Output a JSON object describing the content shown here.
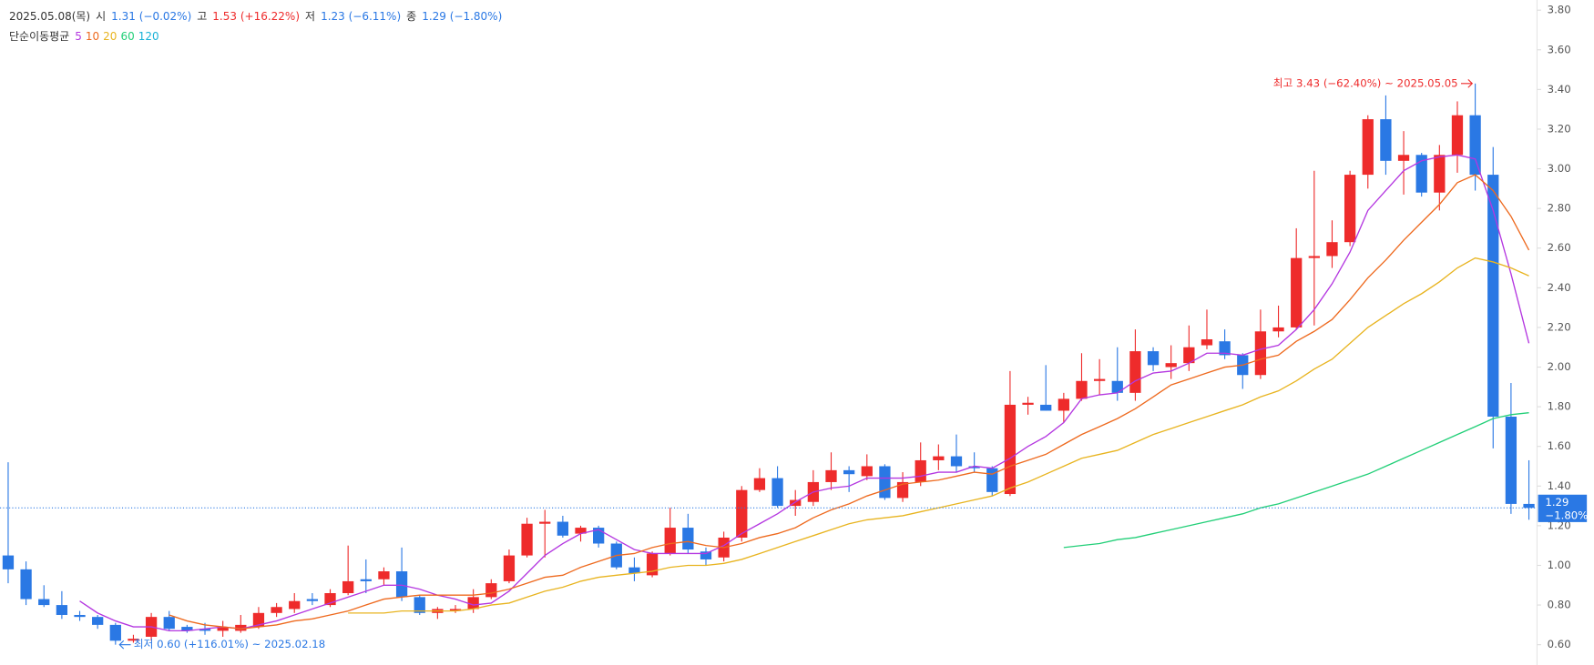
{
  "chart_data": {
    "type": "candlestick",
    "header": {
      "date": "2025.05.08(목)",
      "items": [
        {
          "label": "시",
          "text": "1.31 (−0.02%)",
          "color": "#2a78e4"
        },
        {
          "label": "고",
          "text": "1.53 (+16.22%)",
          "color": "#ee2b2b"
        },
        {
          "label": "저",
          "text": "1.23 (−6.11%)",
          "color": "#2a78e4"
        },
        {
          "label": "종",
          "text": "1.29 (−1.80%)",
          "color": "#2a78e4"
        }
      ]
    },
    "ma_label": "단순이동평균",
    "up_color": "#ee2b2b",
    "down_color": "#2a78e4",
    "open": [
      1.05,
      0.98,
      0.83,
      0.8,
      0.75,
      0.74,
      0.7,
      0.62,
      0.64,
      0.74,
      0.69,
      0.68,
      0.67,
      0.67,
      0.69,
      0.76,
      0.78,
      0.83,
      0.8,
      0.86,
      0.93,
      0.93,
      0.97,
      0.84,
      0.76,
      0.77,
      0.78,
      0.84,
      0.92,
      1.05,
      1.21,
      1.22,
      1.16,
      1.19,
      1.11,
      0.99,
      0.95,
      1.06,
      1.19,
      1.07,
      1.04,
      1.14,
      1.38,
      1.44,
      1.3,
      1.32,
      1.42,
      1.48,
      1.45,
      1.5,
      1.34,
      1.42,
      1.53,
      1.55,
      1.5,
      1.49,
      1.36,
      1.81,
      1.81,
      1.78,
      1.84,
      1.93,
      1.93,
      1.87,
      2.08,
      2.0,
      2.02,
      2.11,
      2.13,
      2.06,
      1.96,
      2.18,
      2.2,
      2.55,
      2.56,
      2.63,
      2.97,
      3.25,
      3.04,
      3.07,
      2.88,
      3.07,
      3.27,
      2.97,
      1.75,
      1.31
    ],
    "high": [
      1.52,
      1.02,
      0.9,
      0.87,
      0.77,
      0.75,
      0.71,
      0.65,
      0.76,
      0.77,
      0.7,
      0.71,
      0.72,
      0.75,
      0.79,
      0.81,
      0.86,
      0.86,
      0.88,
      1.1,
      1.03,
      0.99,
      1.09,
      0.85,
      0.79,
      0.8,
      0.88,
      0.93,
      1.08,
      1.24,
      1.28,
      1.25,
      1.2,
      1.2,
      1.12,
      1.04,
      1.07,
      1.29,
      1.26,
      1.09,
      1.17,
      1.4,
      1.49,
      1.5,
      1.38,
      1.48,
      1.57,
      1.5,
      1.56,
      1.51,
      1.47,
      1.62,
      1.61,
      1.66,
      1.57,
      1.5,
      1.98,
      1.85,
      2.01,
      1.87,
      2.07,
      2.04,
      2.1,
      2.19,
      2.1,
      2.11,
      2.21,
      2.29,
      2.19,
      2.07,
      2.29,
      2.31,
      2.7,
      2.99,
      2.74,
      2.99,
      3.27,
      3.37,
      3.19,
      3.08,
      3.12,
      3.34,
      3.43,
      3.11,
      1.92,
      1.53
    ],
    "low": [
      0.91,
      0.8,
      0.79,
      0.73,
      0.72,
      0.68,
      0.6,
      0.61,
      0.62,
      0.67,
      0.66,
      0.65,
      0.64,
      0.66,
      0.68,
      0.74,
      0.76,
      0.8,
      0.79,
      0.85,
      0.86,
      0.9,
      0.82,
      0.75,
      0.73,
      0.76,
      0.76,
      0.83,
      0.91,
      1.04,
      1.04,
      1.14,
      1.12,
      1.09,
      0.98,
      0.92,
      0.94,
      1.05,
      1.06,
      1.0,
      1.02,
      1.12,
      1.37,
      1.29,
      1.25,
      1.3,
      1.38,
      1.37,
      1.43,
      1.33,
      1.32,
      1.4,
      1.48,
      1.47,
      1.47,
      1.35,
      1.35,
      1.76,
      1.78,
      1.72,
      1.83,
      1.86,
      1.83,
      1.83,
      1.98,
      1.94,
      1.98,
      2.09,
      2.04,
      1.89,
      1.94,
      2.15,
      2.19,
      2.21,
      2.5,
      2.61,
      2.9,
      2.97,
      2.87,
      2.86,
      2.79,
      2.98,
      2.89,
      1.59,
      1.26,
      1.23
    ],
    "close": [
      0.98,
      0.83,
      0.8,
      0.75,
      0.74,
      0.7,
      0.62,
      0.63,
      0.74,
      0.68,
      0.67,
      0.67,
      0.69,
      0.7,
      0.76,
      0.79,
      0.82,
      0.82,
      0.86,
      0.92,
      0.92,
      0.97,
      0.84,
      0.76,
      0.78,
      0.78,
      0.84,
      0.91,
      1.05,
      1.21,
      1.22,
      1.15,
      1.19,
      1.11,
      0.99,
      0.96,
      1.06,
      1.19,
      1.08,
      1.03,
      1.14,
      1.38,
      1.44,
      1.3,
      1.33,
      1.42,
      1.48,
      1.46,
      1.5,
      1.34,
      1.42,
      1.53,
      1.55,
      1.5,
      1.49,
      1.37,
      1.81,
      1.82,
      1.78,
      1.84,
      1.93,
      1.94,
      1.87,
      2.08,
      2.01,
      2.02,
      2.1,
      2.14,
      2.06,
      1.96,
      2.18,
      2.2,
      2.55,
      2.56,
      2.63,
      2.97,
      3.25,
      3.04,
      3.07,
      2.88,
      3.07,
      3.27,
      2.97,
      1.75,
      1.31,
      1.29
    ],
    "series": [
      {
        "name": "5",
        "color": "#b437e0",
        "values": [
          null,
          null,
          null,
          null,
          0.82,
          0.76,
          0.72,
          0.69,
          0.69,
          0.67,
          0.67,
          0.68,
          0.69,
          0.68,
          0.7,
          0.72,
          0.75,
          0.78,
          0.81,
          0.84,
          0.87,
          0.9,
          0.9,
          0.88,
          0.85,
          0.83,
          0.8,
          0.81,
          0.87,
          0.96,
          1.05,
          1.11,
          1.16,
          1.18,
          1.13,
          1.08,
          1.06,
          1.06,
          1.06,
          1.06,
          1.1,
          1.16,
          1.21,
          1.26,
          1.32,
          1.37,
          1.39,
          1.4,
          1.44,
          1.44,
          1.44,
          1.45,
          1.47,
          1.47,
          1.5,
          1.49,
          1.54,
          1.6,
          1.65,
          1.72,
          1.84,
          1.86,
          1.87,
          1.93,
          1.97,
          1.98,
          2.02,
          2.07,
          2.07,
          2.06,
          2.09,
          2.11,
          2.19,
          2.29,
          2.42,
          2.58,
          2.79,
          2.89,
          2.99,
          3.04,
          3.06,
          3.07,
          3.05,
          2.79,
          2.47,
          2.12
        ]
      },
      {
        "name": "10",
        "color": "#ee6a1f",
        "values": [
          null,
          null,
          null,
          null,
          null,
          null,
          null,
          null,
          null,
          0.75,
          0.72,
          0.7,
          0.69,
          0.68,
          0.69,
          0.7,
          0.72,
          0.73,
          0.75,
          0.77,
          0.8,
          0.83,
          0.84,
          0.85,
          0.85,
          0.85,
          0.85,
          0.86,
          0.88,
          0.91,
          0.94,
          0.95,
          0.99,
          1.02,
          1.05,
          1.06,
          1.09,
          1.11,
          1.12,
          1.1,
          1.09,
          1.11,
          1.14,
          1.16,
          1.19,
          1.24,
          1.28,
          1.31,
          1.35,
          1.38,
          1.41,
          1.42,
          1.43,
          1.45,
          1.47,
          1.46,
          1.5,
          1.53,
          1.56,
          1.61,
          1.66,
          1.7,
          1.74,
          1.79,
          1.85,
          1.91,
          1.94,
          1.97,
          2.0,
          2.01,
          2.04,
          2.06,
          2.13,
          2.18,
          2.24,
          2.34,
          2.45,
          2.54,
          2.64,
          2.73,
          2.82,
          2.93,
          2.97,
          2.89,
          2.76,
          2.59
        ]
      },
      {
        "name": "20",
        "color": "#e8b420",
        "values": [
          null,
          null,
          null,
          null,
          null,
          null,
          null,
          null,
          null,
          null,
          null,
          null,
          null,
          null,
          null,
          null,
          null,
          null,
          null,
          0.76,
          0.76,
          0.76,
          0.77,
          0.77,
          0.77,
          0.77,
          0.78,
          0.8,
          0.81,
          0.84,
          0.87,
          0.89,
          0.92,
          0.94,
          0.95,
          0.96,
          0.97,
          0.99,
          1.0,
          1.0,
          1.01,
          1.03,
          1.06,
          1.09,
          1.12,
          1.15,
          1.18,
          1.21,
          1.23,
          1.24,
          1.25,
          1.27,
          1.29,
          1.31,
          1.33,
          1.35,
          1.39,
          1.42,
          1.46,
          1.5,
          1.54,
          1.56,
          1.58,
          1.62,
          1.66,
          1.69,
          1.72,
          1.75,
          1.78,
          1.81,
          1.85,
          1.88,
          1.93,
          1.99,
          2.04,
          2.12,
          2.2,
          2.26,
          2.32,
          2.37,
          2.43,
          2.5,
          2.55,
          2.53,
          2.5,
          2.46
        ]
      },
      {
        "name": "60",
        "color": "#22cf78",
        "values": [
          null,
          null,
          null,
          null,
          null,
          null,
          null,
          null,
          null,
          null,
          null,
          null,
          null,
          null,
          null,
          null,
          null,
          null,
          null,
          null,
          null,
          null,
          null,
          null,
          null,
          null,
          null,
          null,
          null,
          null,
          null,
          null,
          null,
          null,
          null,
          null,
          null,
          null,
          null,
          null,
          null,
          null,
          null,
          null,
          null,
          null,
          null,
          null,
          null,
          null,
          null,
          null,
          null,
          null,
          null,
          null,
          null,
          null,
          null,
          1.09,
          1.1,
          1.11,
          1.13,
          1.14,
          1.16,
          1.18,
          1.2,
          1.22,
          1.24,
          1.26,
          1.29,
          1.31,
          1.34,
          1.37,
          1.4,
          1.43,
          1.46,
          1.5,
          1.54,
          1.58,
          1.62,
          1.66,
          1.7,
          1.74,
          1.76,
          1.77
        ]
      },
      {
        "name": "120",
        "color": "#1ab2d8",
        "values": [
          null,
          null,
          null,
          null,
          null,
          null,
          null,
          null,
          null,
          null,
          null,
          null,
          null,
          null,
          null,
          null,
          null,
          null,
          null,
          null,
          null,
          null,
          null,
          null,
          null,
          null,
          null,
          null,
          null,
          null,
          null,
          null,
          null,
          null,
          null,
          null,
          null,
          null,
          null,
          null,
          null,
          null,
          null,
          null,
          null,
          null,
          null,
          null,
          null,
          null,
          null,
          null,
          null,
          null,
          null,
          null,
          null,
          null,
          null,
          null,
          null,
          null,
          null,
          null,
          null,
          null,
          null,
          null,
          null,
          null,
          null,
          null,
          null,
          null,
          null,
          null,
          null,
          null,
          null,
          null,
          null,
          null,
          null,
          null,
          null,
          null
        ]
      }
    ],
    "high_annotation": "최고 3.43 (−62.40%) ~ 2025.05.05",
    "low_annotation": "최저 0.60 (+116.01%) ~ 2025.02.18",
    "last_label": [
      "1.29",
      "−1.80%"
    ],
    "ylim": [
      0.6,
      3.8
    ],
    "yticks": [
      {
        "value": 0.6,
        "label": "0.60"
      },
      {
        "value": 0.8,
        "label": "0.80"
      },
      {
        "value": 1,
        "label": "1.00"
      },
      {
        "value": 1.2,
        "label": "1.20"
      },
      {
        "value": 1.4,
        "label": "1.40"
      },
      {
        "value": 1.6,
        "label": "1.60"
      },
      {
        "value": 1.8,
        "label": "1.80"
      },
      {
        "value": 2,
        "label": "2.00"
      },
      {
        "value": 2.2,
        "label": "2.20"
      },
      {
        "value": 2.4,
        "label": "2.40"
      },
      {
        "value": 2.6,
        "label": "2.60"
      },
      {
        "value": 2.8,
        "label": "2.80"
      },
      {
        "value": 3,
        "label": "3.00"
      },
      {
        "value": 3.2,
        "label": "3.20"
      },
      {
        "value": 3.4,
        "label": "3.40"
      },
      {
        "value": 3.6,
        "label": "3.60"
      },
      {
        "value": 3.8,
        "label": "3.80"
      }
    ]
  }
}
